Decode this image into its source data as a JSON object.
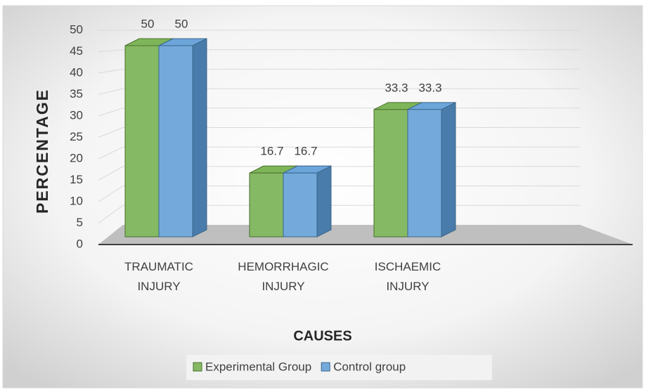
{
  "chart_data": {
    "type": "bar3d",
    "x_label": "CAUSES",
    "y_label": "PERCENTAGE",
    "categories": [
      "TRAUMATIC INJURY",
      "HEMORRHAGIC INJURY",
      "ISCHAEMIC INJURY"
    ],
    "series": [
      {
        "name": "Experimental Group",
        "color": "#70ad47",
        "values": [
          50,
          16.7,
          33.3
        ]
      },
      {
        "name": "Control group",
        "color": "#5b9bd5",
        "values": [
          50,
          16.7,
          33.3
        ]
      }
    ],
    "ylim": [
      0,
      50
    ],
    "yticks": [
      0,
      5,
      10,
      15,
      20,
      25,
      30,
      35,
      40,
      45,
      50
    ],
    "grid": true,
    "legend": "bottom"
  }
}
